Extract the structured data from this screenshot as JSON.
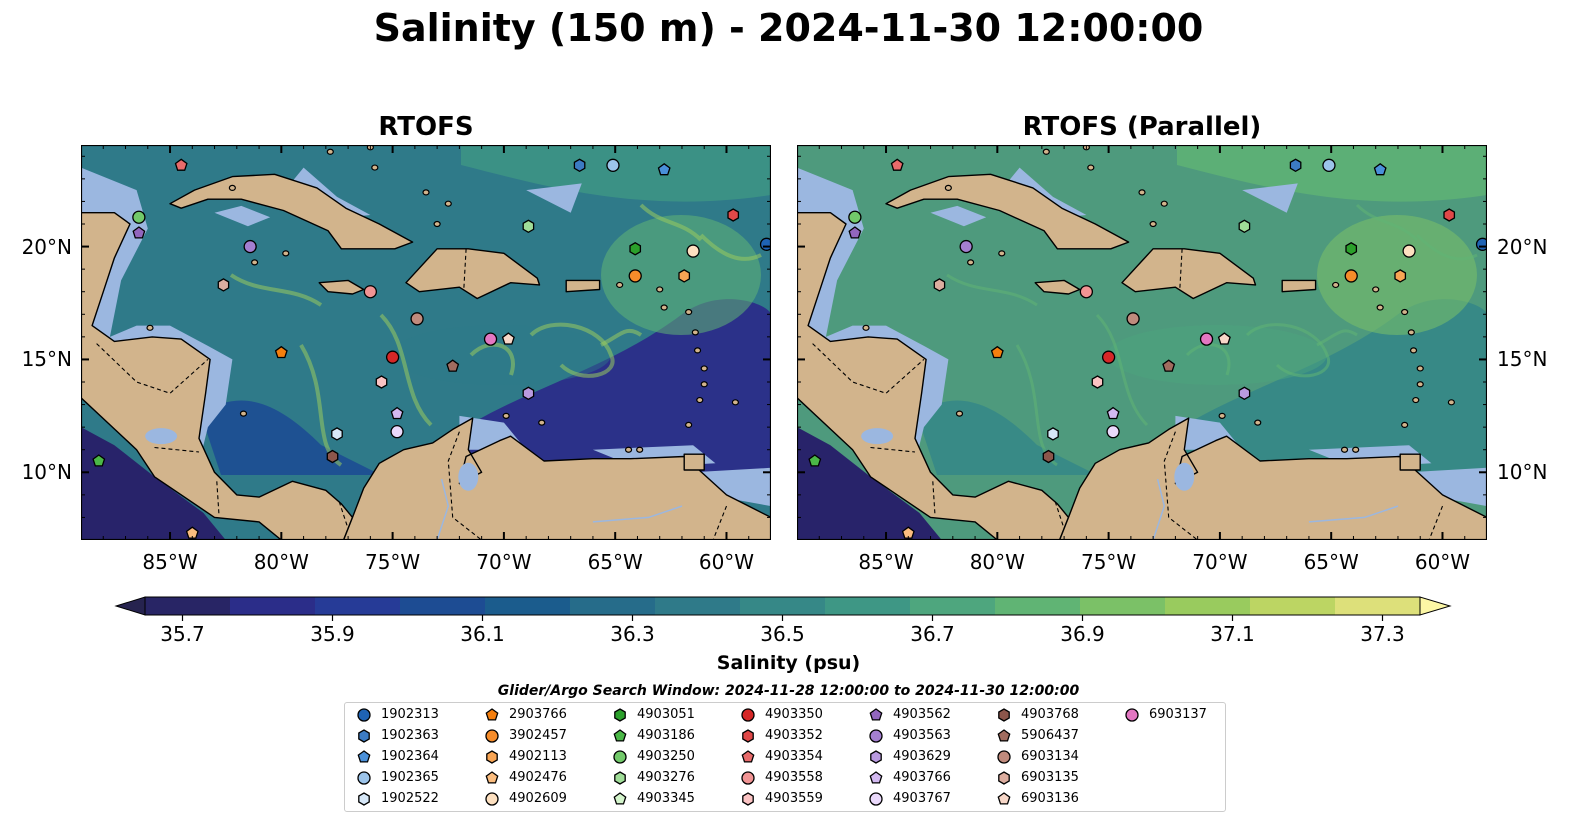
{
  "title": "Salinity (150 m) - 2024-11-30 12:00:00",
  "panels": [
    {
      "title": "RTOFS",
      "variant": "rtofs"
    },
    {
      "title": "RTOFS (Parallel)",
      "variant": "parallel"
    }
  ],
  "axes": {
    "lon_labels": [
      "85°W",
      "80°W",
      "75°W",
      "70°W",
      "65°W",
      "60°W"
    ],
    "lon_values": [
      -85,
      -80,
      -75,
      -70,
      -65,
      -60
    ],
    "lat_labels": [
      "20°N",
      "15°N",
      "10°N"
    ],
    "lat_values": [
      20,
      15,
      10
    ],
    "lon_range": [
      -89,
      -58
    ],
    "lat_range": [
      7,
      24.5
    ]
  },
  "colorbar": {
    "label": "Salinity (psu)",
    "tick_labels": [
      "35.7",
      "35.9",
      "36.1",
      "36.3",
      "36.5",
      "36.7",
      "36.9",
      "37.1",
      "37.3"
    ],
    "min": 35.7,
    "max": 37.3,
    "colors": [
      "#282565",
      "#2b2d89",
      "#263b97",
      "#1d4c93",
      "#1b5c8d",
      "#266c8a",
      "#2f7a89",
      "#368887",
      "#3e9785",
      "#4ea67e",
      "#60b474",
      "#7bc167",
      "#99cb5e",
      "#bcd563",
      "#dde07a"
    ]
  },
  "legend": {
    "title": "Glider/Argo Search Window: 2024-11-28 12:00:00 to 2024-11-30 12:00:00",
    "items": [
      {
        "id": "1902313",
        "color": "#1f63b4",
        "shape": "circle"
      },
      {
        "id": "1902363",
        "color": "#3c7bc3",
        "shape": "hexagon"
      },
      {
        "id": "1902364",
        "color": "#4a90d9",
        "shape": "pentagon"
      },
      {
        "id": "1902365",
        "color": "#9cc4ea",
        "shape": "circle"
      },
      {
        "id": "1902522",
        "color": "#d7e8f8",
        "shape": "hexagon"
      },
      {
        "id": "2903766",
        "color": "#f57f0e",
        "shape": "pentagon"
      },
      {
        "id": "3902457",
        "color": "#f68c2a",
        "shape": "circle"
      },
      {
        "id": "4902113",
        "color": "#f9a554",
        "shape": "hexagon"
      },
      {
        "id": "4902476",
        "color": "#fbbd7f",
        "shape": "pentagon"
      },
      {
        "id": "4902609",
        "color": "#fde0c0",
        "shape": "circle"
      },
      {
        "id": "4903051",
        "color": "#2ba02b",
        "shape": "hexagon"
      },
      {
        "id": "4903186",
        "color": "#4bb847",
        "shape": "pentagon"
      },
      {
        "id": "4903250",
        "color": "#72c96a",
        "shape": "circle"
      },
      {
        "id": "4903276",
        "color": "#a0dd98",
        "shape": "hexagon"
      },
      {
        "id": "4903345",
        "color": "#d4f5cc",
        "shape": "pentagon"
      },
      {
        "id": "4903350",
        "color": "#d62727",
        "shape": "circle"
      },
      {
        "id": "4903352",
        "color": "#e04848",
        "shape": "hexagon"
      },
      {
        "id": "4903354",
        "color": "#e86b6b",
        "shape": "pentagon"
      },
      {
        "id": "4903558",
        "color": "#f19494",
        "shape": "circle"
      },
      {
        "id": "4903559",
        "color": "#fbc3c3",
        "shape": "hexagon"
      },
      {
        "id": "4903562",
        "color": "#9266bd",
        "shape": "pentagon"
      },
      {
        "id": "4903563",
        "color": "#a47fd0",
        "shape": "circle"
      },
      {
        "id": "4903629",
        "color": "#b99ae0",
        "shape": "hexagon"
      },
      {
        "id": "4903766",
        "color": "#d3b9f1",
        "shape": "pentagon"
      },
      {
        "id": "4903767",
        "color": "#ead9fb",
        "shape": "circle"
      },
      {
        "id": "4903768",
        "color": "#8c564b",
        "shape": "hexagon"
      },
      {
        "id": "5906437",
        "color": "#a16c5f",
        "shape": "pentagon"
      },
      {
        "id": "6903134",
        "color": "#c08b7d",
        "shape": "circle"
      },
      {
        "id": "6903135",
        "color": "#dcad9f",
        "shape": "hexagon"
      },
      {
        "id": "6903136",
        "color": "#f7d7c8",
        "shape": "pentagon"
      },
      {
        "id": "6903137",
        "color": "#e377c2",
        "shape": "circle"
      }
    ]
  },
  "markers": [
    {
      "id": "1902313",
      "lon": -58.2,
      "lat": 20.1
    },
    {
      "id": "1902363",
      "lon": -66.6,
      "lat": 23.6
    },
    {
      "id": "1902365",
      "lon": -65.1,
      "lat": 23.6
    },
    {
      "id": "1902364",
      "lon": -62.8,
      "lat": 23.4
    },
    {
      "id": "4903354",
      "lon": -84.5,
      "lat": 23.6
    },
    {
      "id": "4903352",
      "lon": -59.7,
      "lat": 21.4
    },
    {
      "id": "4903250",
      "lon": -86.4,
      "lat": 21.3
    },
    {
      "id": "4903562",
      "lon": -86.4,
      "lat": 20.6
    },
    {
      "id": "4903276",
      "lon": -68.9,
      "lat": 20.9
    },
    {
      "id": "4903563",
      "lon": -81.4,
      "lat": 20.0
    },
    {
      "id": "4903051",
      "lon": -64.1,
      "lat": 19.9
    },
    {
      "id": "4902609",
      "lon": -61.5,
      "lat": 19.8
    },
    {
      "id": "3902457",
      "lon": -64.1,
      "lat": 18.7
    },
    {
      "id": "4902113",
      "lon": -61.9,
      "lat": 18.7
    },
    {
      "id": "6903135",
      "lon": -82.6,
      "lat": 18.3
    },
    {
      "id": "4903558",
      "lon": -76.0,
      "lat": 18.0
    },
    {
      "id": "6903134",
      "lon": -73.9,
      "lat": 16.8
    },
    {
      "id": "6903137",
      "lon": -70.6,
      "lat": 15.9
    },
    {
      "id": "6903136",
      "lon": -69.8,
      "lat": 15.9
    },
    {
      "id": "2903766",
      "lon": -80.0,
      "lat": 15.3
    },
    {
      "id": "4903350",
      "lon": -75.0,
      "lat": 15.1
    },
    {
      "id": "5906437",
      "lon": -72.3,
      "lat": 14.7
    },
    {
      "id": "4903559",
      "lon": -75.5,
      "lat": 14.0
    },
    {
      "id": "4903629",
      "lon": -68.9,
      "lat": 13.5
    },
    {
      "id": "4903766",
      "lon": -74.8,
      "lat": 12.6
    },
    {
      "id": "1902522",
      "lon": -77.5,
      "lat": 11.7
    },
    {
      "id": "4903767",
      "lon": -74.8,
      "lat": 11.8
    },
    {
      "id": "4903768",
      "lon": -77.7,
      "lat": 10.7
    },
    {
      "id": "4903186",
      "lon": -88.2,
      "lat": 10.5
    },
    {
      "id": "4902476",
      "lon": -84.0,
      "lat": 7.3
    }
  ]
}
